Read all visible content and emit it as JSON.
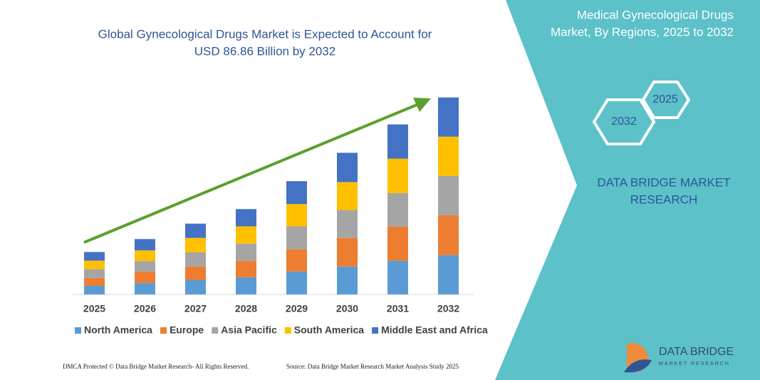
{
  "chart_data": {
    "type": "bar",
    "stacked": true,
    "title": [
      "Global Gynecological Drugs Market is Expected to Account for",
      "USD 86.86 Billion by 2032"
    ],
    "categories": [
      "2025",
      "2026",
      "2027",
      "2028",
      "2029",
      "2030",
      "2031",
      "2032"
    ],
    "series": [
      {
        "name": "North America",
        "color": "#5b9bd5",
        "values": [
          3.8,
          5.0,
          6.3,
          7.6,
          10.1,
          12.3,
          14.8,
          17.3
        ]
      },
      {
        "name": "Europe",
        "color": "#ed7d31",
        "values": [
          3.5,
          5.0,
          6.0,
          7.2,
          9.8,
          12.6,
          15.1,
          17.6
        ]
      },
      {
        "name": "Asia Pacific",
        "color": "#a5a5a5",
        "values": [
          3.8,
          4.7,
          6.3,
          7.6,
          10.1,
          12.3,
          14.8,
          17.3
        ]
      },
      {
        "name": "South America",
        "color": "#ffc000",
        "values": [
          3.8,
          4.7,
          6.3,
          7.6,
          9.8,
          12.3,
          15.1,
          17.3
        ]
      },
      {
        "name": "Middle East and Africa",
        "color": "#4472c4",
        "values": [
          3.8,
          5.0,
          6.3,
          7.6,
          10.1,
          12.9,
          15.1,
          17.3
        ]
      }
    ],
    "ylim": [
      0,
      87
    ]
  },
  "panel": {
    "title": [
      "Medical Gynecological Drugs",
      "Market, By Regions, 2025 to 2032"
    ],
    "hexagons": [
      "2025",
      "2032"
    ],
    "brand": [
      "DATA BRIDGE MARKET",
      "RESEARCH"
    ]
  },
  "footer": {
    "left": "DMCA Protected © Data Bridge Market Research- All Rights Reserved.",
    "right": "Source: Data Bridge Market Research Market Analysis Study 2025"
  },
  "logo": {
    "name": "DATA BRIDGE",
    "tagline": "MARKET RESEARCH"
  }
}
